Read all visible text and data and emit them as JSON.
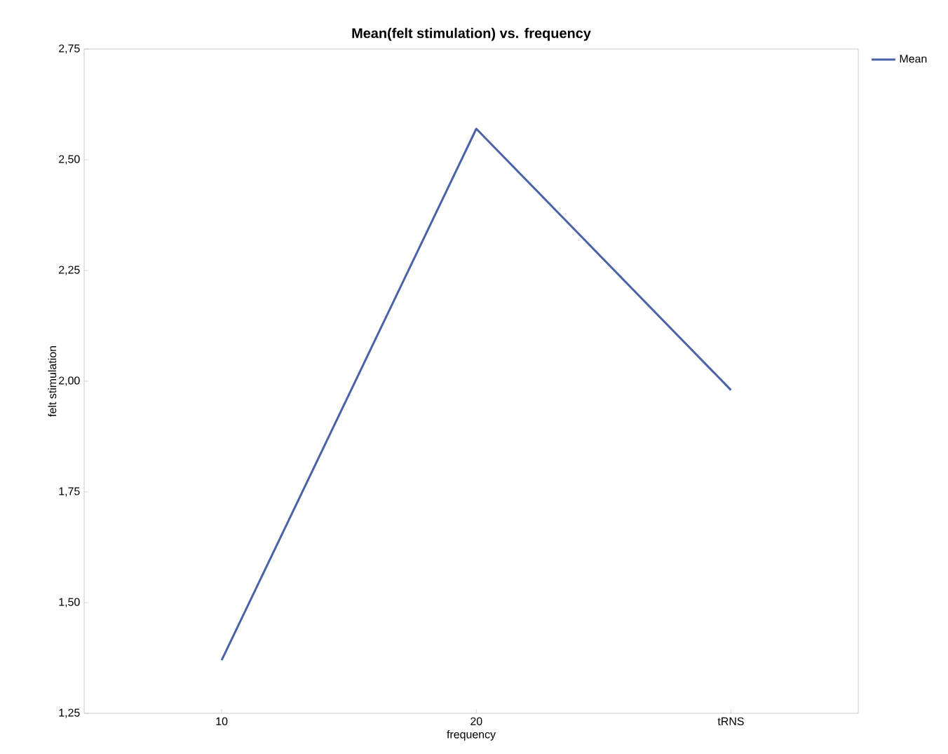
{
  "chart_data": {
    "type": "line",
    "title": "Mean(felt stimulation) vs. frequency",
    "xlabel": "frequency",
    "ylabel": "felt stimulation",
    "categories": [
      "10",
      "20",
      "tRNS"
    ],
    "series": [
      {
        "name": "Mean",
        "color": "#4a62a8",
        "values": [
          1.37,
          2.57,
          1.98
        ]
      }
    ],
    "ylim": [
      1.25,
      2.75
    ],
    "yticks": [
      {
        "value": 1.25,
        "label": "1,25"
      },
      {
        "value": 1.5,
        "label": "1,50"
      },
      {
        "value": 1.75,
        "label": "1,75"
      },
      {
        "value": 2.0,
        "label": "2,00"
      },
      {
        "value": 2.25,
        "label": "2,25"
      },
      {
        "value": 2.5,
        "label": "2,50"
      },
      {
        "value": 2.75,
        "label": "2,75"
      }
    ],
    "legend": "right",
    "marker": "none",
    "line_style": "solid",
    "grid": false
  }
}
